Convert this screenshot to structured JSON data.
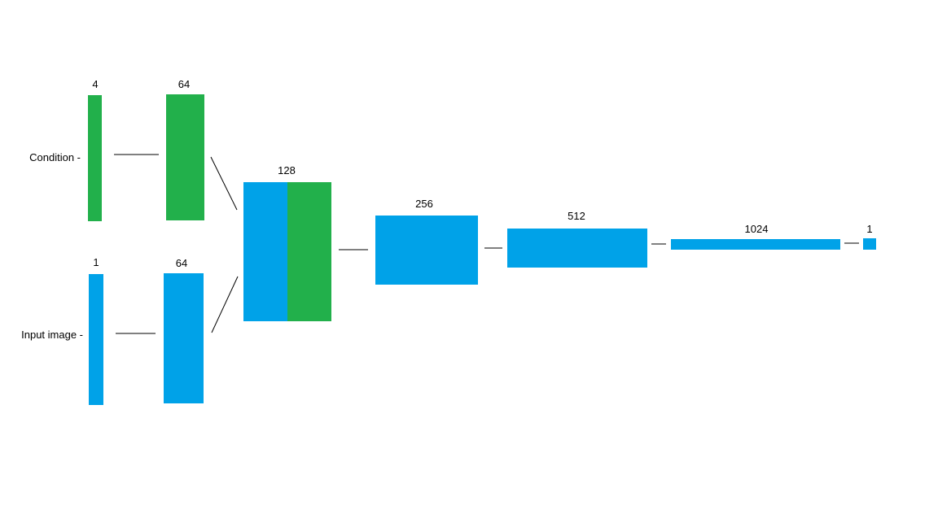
{
  "colors": {
    "green": "#22b04b",
    "blue": "#00a2e8",
    "line": "#000000",
    "background": "#ffffff"
  },
  "inputs": {
    "condition_label": "Condition -",
    "input_image_label": "Input image -"
  },
  "layers": {
    "condition_in": "4",
    "condition_fc": "64",
    "image_in": "1",
    "image_fc": "64",
    "concat": "128",
    "hidden_256": "256",
    "hidden_512": "512",
    "hidden_1024": "1024",
    "output": "1"
  }
}
